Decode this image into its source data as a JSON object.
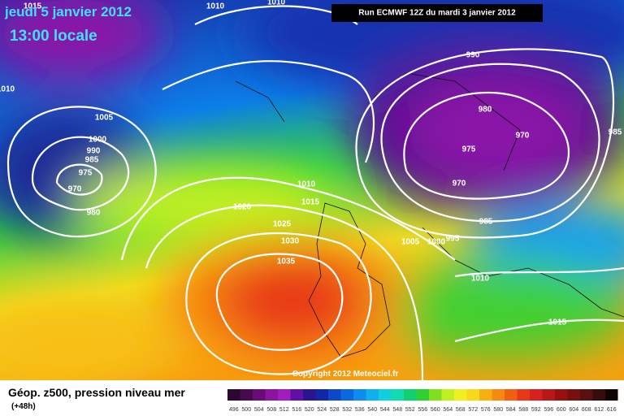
{
  "header": {
    "date": "jeudi 5 janvier 2012",
    "time": "13:00 locale",
    "run": "Run ECMWF 12Z du mardi 3 janvier 2012"
  },
  "copyright": "Copyright 2012 Meteociel.fr",
  "footer": {
    "title": "Géop. z500, pression niveau mer",
    "subtitle": "(+48h)"
  },
  "isobar_labels": [
    "1015",
    "1010",
    "1010",
    "1010",
    "1005",
    "1000",
    "990",
    "985",
    "975",
    "970",
    "980",
    "990",
    "980",
    "970",
    "975",
    "970",
    "985",
    "985",
    "995",
    "1000",
    "1005",
    "1010",
    "1015",
    "1020",
    "1025",
    "1030",
    "1035",
    "1010",
    "1015"
  ],
  "scale": {
    "values": [
      496,
      500,
      504,
      508,
      512,
      516,
      520,
      524,
      528,
      532,
      536,
      540,
      544,
      548,
      552,
      556,
      560,
      564,
      568,
      572,
      576,
      580,
      584,
      588,
      592,
      596,
      600,
      604,
      608,
      612,
      616
    ],
    "colors": [
      "#2a0830",
      "#480a4e",
      "#6a0c78",
      "#8a14a0",
      "#a41cc0",
      "#6010a8",
      "#2a1490",
      "#1028a8",
      "#0c48c8",
      "#0a68e0",
      "#0c8cf0",
      "#10b0f0",
      "#10d0e0",
      "#10dcb0",
      "#10d070",
      "#30d030",
      "#80e020",
      "#c0f020",
      "#f0f020",
      "#f8d818",
      "#f8b010",
      "#f88810",
      "#f06010",
      "#e83818",
      "#d82020",
      "#b81818",
      "#981010",
      "#781010",
      "#581010",
      "#380c0c",
      "#100404"
    ]
  }
}
